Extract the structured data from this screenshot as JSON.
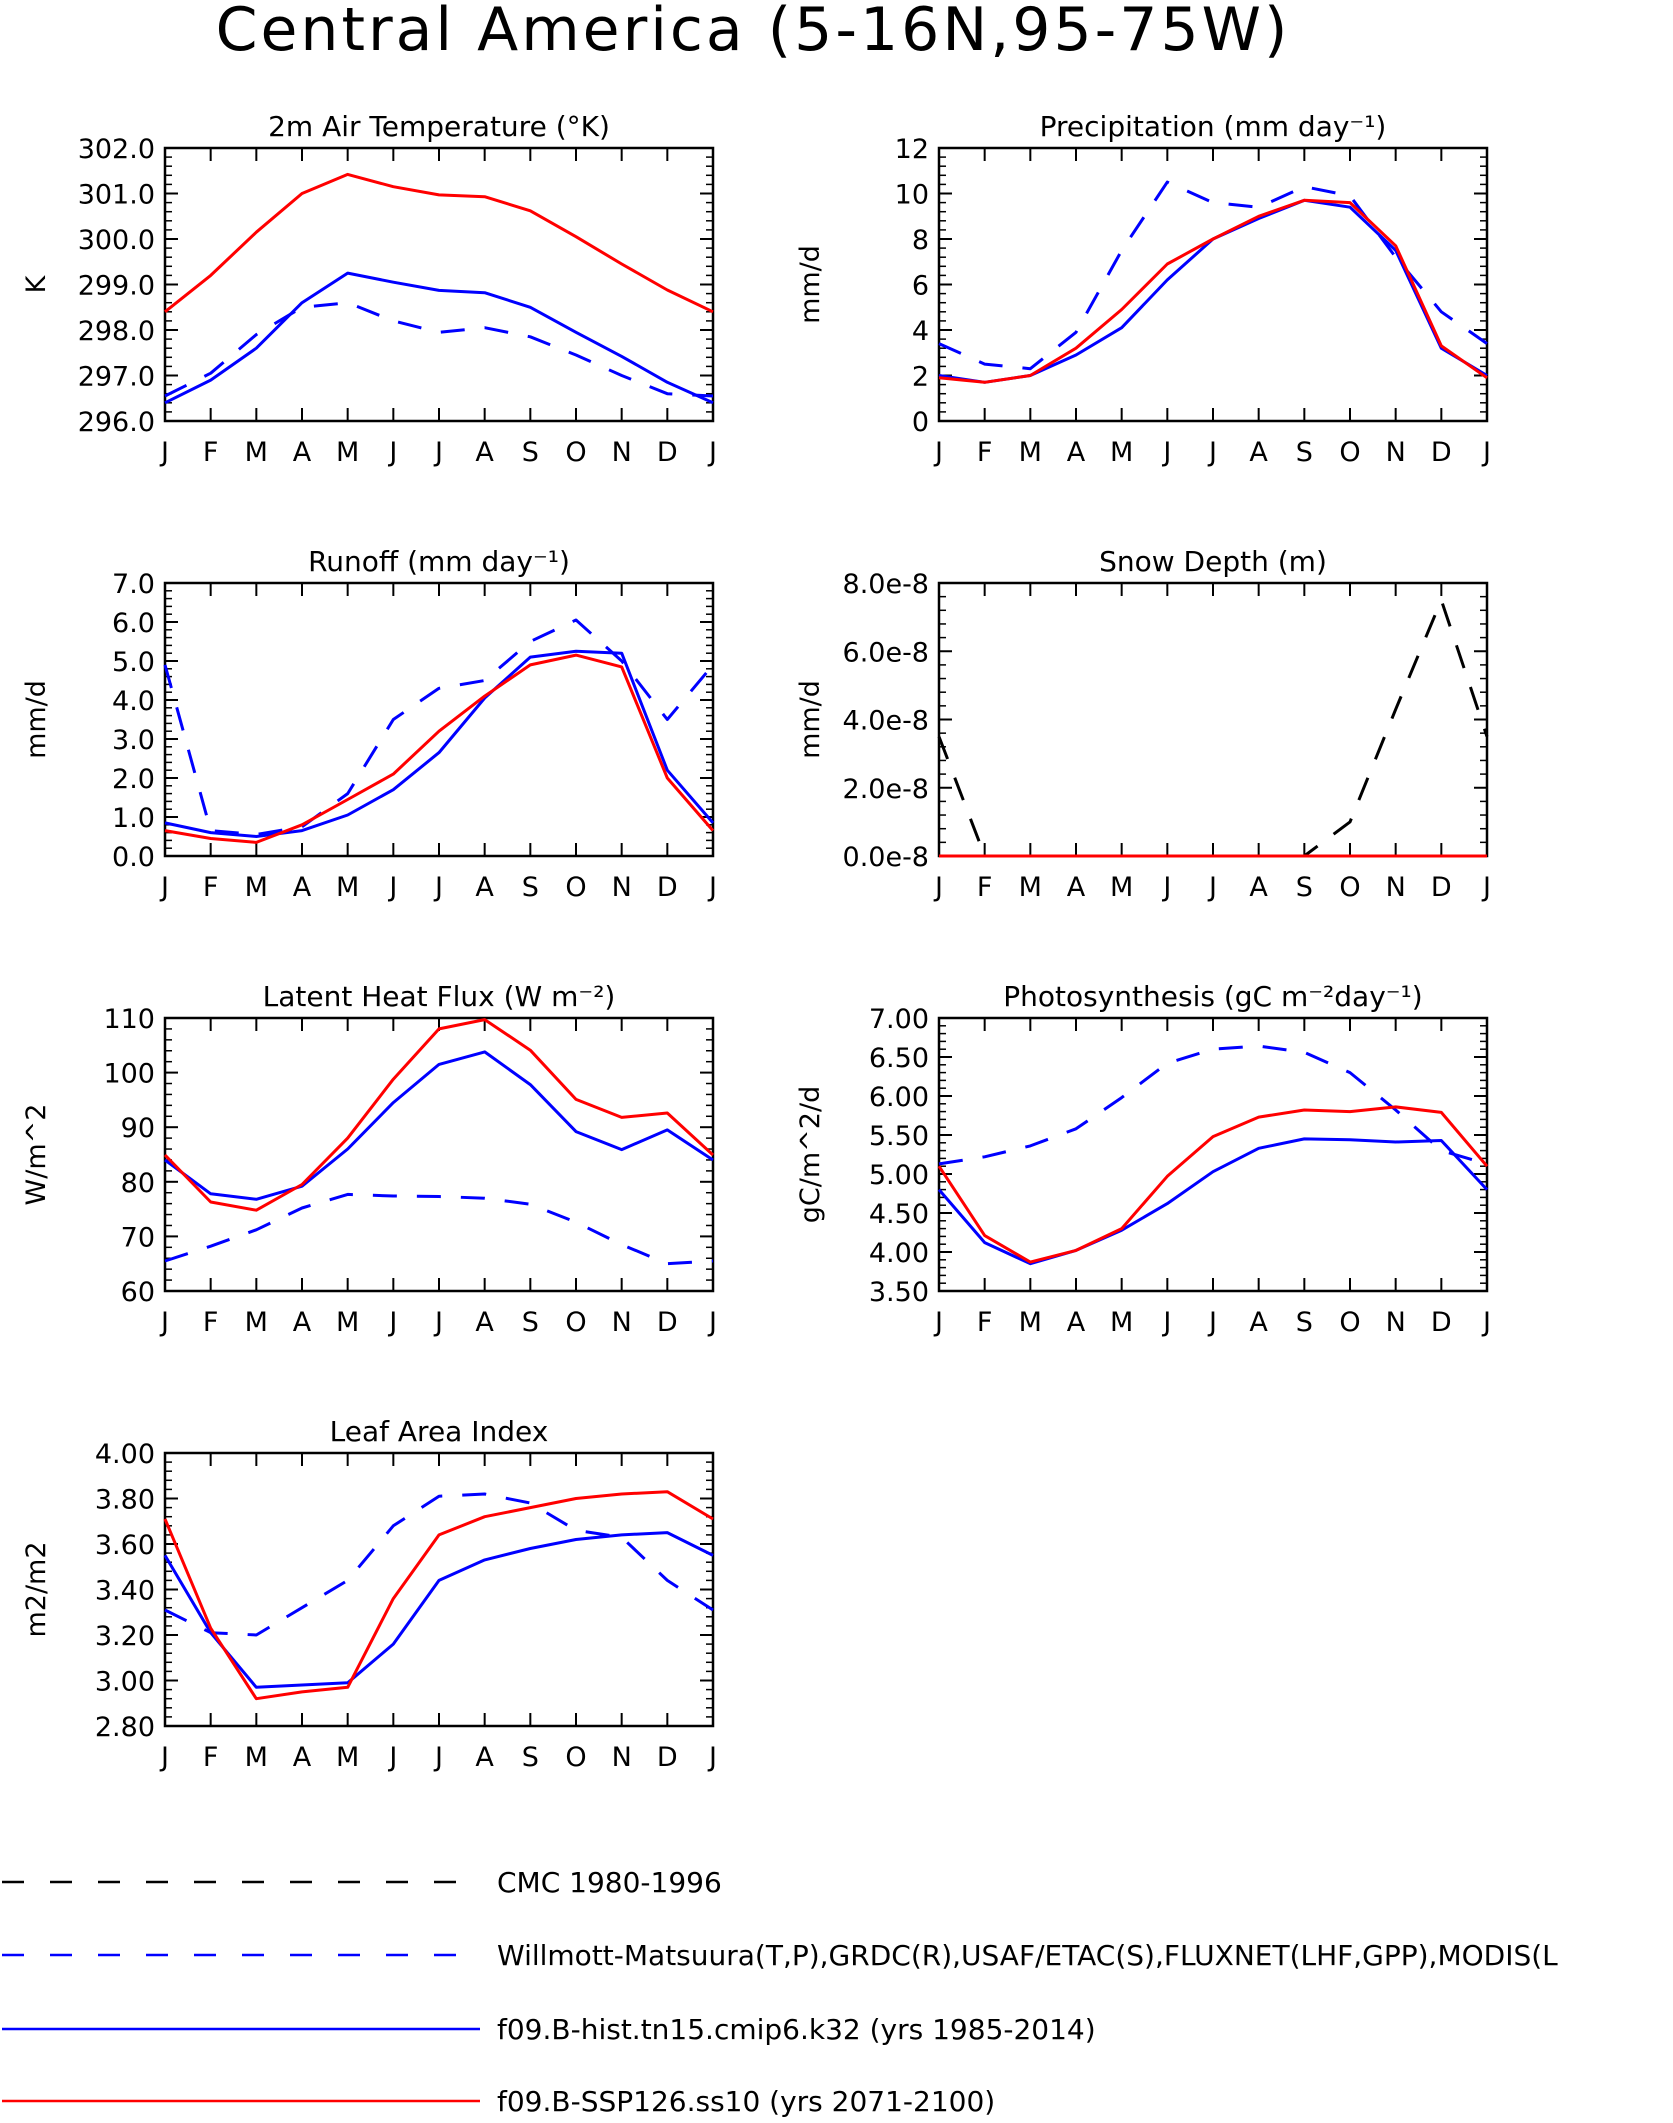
{
  "title": "Central America (5-16N,95-75W)",
  "months": [
    "J",
    "F",
    "M",
    "A",
    "M",
    "J",
    "J",
    "A",
    "S",
    "O",
    "N",
    "D",
    "J"
  ],
  "colors": {
    "cmc": "#000000",
    "obs": "#0000ff",
    "hist": "#0000ff",
    "ssp": "#ff0000"
  },
  "legend": [
    {
      "key": "cmc",
      "label": "CMC 1980-1996",
      "style": "dashed"
    },
    {
      "key": "obs",
      "label": "Willmott-Matsuura(T,P),GRDC(R),USAF/ETAC(S),FLUXNET(LHF,GPP),MODIS(L",
      "style": "dashed"
    },
    {
      "key": "hist",
      "label": "f09.B-hist.tn15.cmip6.k32 (yrs 1985-2014)",
      "style": "solid"
    },
    {
      "key": "ssp",
      "label": "f09.B-SSP126.ss10 (yrs 2071-2100)",
      "style": "solid"
    }
  ],
  "chart_data": [
    {
      "type": "line",
      "title": "2m Air Temperature (°K)",
      "ylabel": "K",
      "ylim": [
        296.0,
        302.0
      ],
      "yticks": [
        "296.0",
        "297.0",
        "298.0",
        "299.0",
        "300.0",
        "301.0",
        "302.0"
      ],
      "series": [
        {
          "name": "Willmott-Matsuura(T,P),GRDC(R),USAF/ETAC(S),FLUXNET(LHF,GPP),MODIS(L",
          "key": "obs",
          "values": [
            296.55,
            297.05,
            297.9,
            298.5,
            298.6,
            298.2,
            297.95,
            298.05,
            297.85,
            297.45,
            297.0,
            296.6,
            296.55
          ]
        },
        {
          "name": "f09.B-hist.tn15.cmip6.k32 (yrs 1985-2014)",
          "key": "hist",
          "values": [
            296.4,
            296.9,
            297.6,
            298.6,
            299.25,
            299.05,
            298.87,
            298.82,
            298.5,
            297.95,
            297.42,
            296.85,
            296.4
          ]
        },
        {
          "name": "f09.B-SSP126.ss10 (yrs 2071-2100)",
          "key": "ssp",
          "values": [
            298.4,
            299.2,
            300.15,
            301.0,
            301.42,
            301.15,
            300.97,
            300.93,
            300.62,
            300.05,
            299.45,
            298.88,
            298.4
          ]
        }
      ]
    },
    {
      "type": "line",
      "title": "Precipitation (mm day⁻¹)",
      "ylabel": "mm/d",
      "ylim": [
        0,
        12
      ],
      "yticks": [
        "0",
        "2",
        "4",
        "6",
        "8",
        "10",
        "12"
      ],
      "series": [
        {
          "name": "Willmott-Matsuura(T,P),GRDC(R),USAF/ETAC(S),FLUXNET(LHF,GPP),MODIS(L",
          "key": "obs",
          "values": [
            3.4,
            2.5,
            2.3,
            3.9,
            7.5,
            10.5,
            9.6,
            9.4,
            10.3,
            9.9,
            7.2,
            4.8,
            3.4
          ]
        },
        {
          "name": "f09.B-hist.tn15.cmip6.k32 (yrs 1985-2014)",
          "key": "hist",
          "values": [
            2.0,
            1.7,
            2.0,
            2.9,
            4.1,
            6.2,
            8.0,
            8.9,
            9.7,
            9.4,
            7.5,
            3.2,
            2.0
          ]
        },
        {
          "name": "f09.B-SSP126.ss10 (yrs 2071-2100)",
          "key": "ssp",
          "values": [
            1.9,
            1.7,
            2.0,
            3.2,
            4.9,
            6.9,
            8.0,
            9.0,
            9.7,
            9.6,
            7.7,
            3.3,
            1.9
          ]
        }
      ]
    },
    {
      "type": "line",
      "title": "Runoff (mm day⁻¹)",
      "ylabel": "mm/d",
      "ylim": [
        0,
        7
      ],
      "yticks": [
        "0.0",
        "1.0",
        "2.0",
        "3.0",
        "4.0",
        "5.0",
        "6.0",
        "7.0"
      ],
      "series": [
        {
          "name": "Willmott-Matsuura(T,P),GRDC(R),USAF/ETAC(S),FLUXNET(LHF,GPP),MODIS(L",
          "key": "obs",
          "values": [
            4.9,
            0.65,
            0.55,
            0.75,
            1.6,
            3.5,
            4.3,
            4.5,
            5.5,
            6.05,
            5.0,
            3.5,
            4.9
          ]
        },
        {
          "name": "f09.B-hist.tn15.cmip6.k32 (yrs 1985-2014)",
          "key": "hist",
          "values": [
            0.85,
            0.6,
            0.5,
            0.65,
            1.05,
            1.7,
            2.65,
            4.05,
            5.1,
            5.25,
            5.2,
            2.2,
            0.85
          ]
        },
        {
          "name": "f09.B-SSP126.ss10 (yrs 2071-2100)",
          "key": "ssp",
          "values": [
            0.65,
            0.45,
            0.35,
            0.8,
            1.45,
            2.1,
            3.2,
            4.1,
            4.9,
            5.15,
            4.85,
            2.0,
            0.65
          ]
        }
      ]
    },
    {
      "type": "line",
      "title": "Snow Depth (m)",
      "ylabel": "mm/d",
      "ylim": [
        0,
        8e-08
      ],
      "yticks": [
        "0.0e-8",
        "2.0e-8",
        "4.0e-8",
        "6.0e-8",
        "8.0e-8"
      ],
      "series": [
        {
          "name": "CMC 1980-1996",
          "key": "cmc",
          "values": [
            3.5e-08,
            0,
            0,
            0,
            0,
            0,
            0,
            0,
            0,
            1e-08,
            4.3e-08,
            7.5e-08,
            3.5e-08
          ]
        },
        {
          "name": "f09.B-hist.tn15.cmip6.k32 (yrs 1985-2014)",
          "key": "hist",
          "values": [
            0,
            0,
            0,
            0,
            0,
            0,
            0,
            0,
            0,
            0,
            0,
            0,
            0
          ]
        },
        {
          "name": "f09.B-SSP126.ss10 (yrs 2071-2100)",
          "key": "ssp",
          "values": [
            0,
            0,
            0,
            0,
            0,
            0,
            0,
            0,
            0,
            0,
            0,
            0,
            0
          ]
        }
      ]
    },
    {
      "type": "line",
      "title": "Latent Heat Flux (W m⁻²)",
      "ylabel": "W/m^2",
      "ylim": [
        60,
        110
      ],
      "yticks": [
        "60",
        "70",
        "80",
        "90",
        "100",
        "110"
      ],
      "series": [
        {
          "name": "Willmott-Matsuura(T,P),GRDC(R),USAF/ETAC(S),FLUXNET(LHF,GPP),MODIS(L",
          "key": "obs",
          "values": [
            65.5,
            68.2,
            71.2,
            75.2,
            77.7,
            77.4,
            77.3,
            77.0,
            75.9,
            72.6,
            68.5,
            65.0,
            65.5
          ]
        },
        {
          "name": "f09.B-hist.tn15.cmip6.k32 (yrs 1985-2014)",
          "key": "hist",
          "values": [
            84.0,
            77.8,
            76.8,
            79.2,
            86.0,
            94.5,
            101.5,
            103.8,
            97.8,
            89.2,
            85.9,
            89.5,
            84.0
          ]
        },
        {
          "name": "f09.B-SSP126.ss10 (yrs 2071-2100)",
          "key": "ssp",
          "values": [
            84.9,
            76.3,
            74.8,
            79.5,
            88.0,
            98.8,
            108.0,
            109.7,
            104.1,
            95.1,
            91.8,
            92.6,
            84.9
          ]
        }
      ]
    },
    {
      "type": "line",
      "title": "Photosynthesis (gC m⁻²day⁻¹)",
      "ylabel": "gC/m^2/d",
      "ylim": [
        3.5,
        7.0
      ],
      "yticks": [
        "3.50",
        "4.00",
        "4.50",
        "5.00",
        "5.50",
        "6.00",
        "6.50",
        "7.00"
      ],
      "series": [
        {
          "name": "Willmott-Matsuura(T,P),GRDC(R),USAF/ETAC(S),FLUXNET(LHF,GPP),MODIS(L",
          "key": "obs",
          "values": [
            5.13,
            5.22,
            5.36,
            5.58,
            5.98,
            6.42,
            6.6,
            6.64,
            6.56,
            6.3,
            5.82,
            5.3,
            5.13
          ]
        },
        {
          "name": "f09.B-hist.tn15.cmip6.k32 (yrs 1985-2014)",
          "key": "hist",
          "values": [
            4.8,
            4.12,
            3.85,
            4.02,
            4.28,
            4.62,
            5.03,
            5.33,
            5.45,
            5.44,
            5.41,
            5.43,
            4.8
          ]
        },
        {
          "name": "f09.B-SSP126.ss10 (yrs 2071-2100)",
          "key": "ssp",
          "values": [
            5.1,
            4.21,
            3.87,
            4.02,
            4.3,
            4.97,
            5.48,
            5.73,
            5.82,
            5.8,
            5.86,
            5.79,
            5.1
          ]
        }
      ]
    },
    {
      "type": "line",
      "title": "Leaf Area Index",
      "ylabel": "m2/m2",
      "ylim": [
        2.8,
        4.0
      ],
      "yticks": [
        "2.80",
        "3.00",
        "3.20",
        "3.40",
        "3.60",
        "3.80",
        "4.00"
      ],
      "series": [
        {
          "name": "Willmott-Matsuura(T,P),GRDC(R),USAF/ETAC(S),FLUXNET(LHF,GPP),MODIS(L",
          "key": "obs",
          "values": [
            3.31,
            3.21,
            3.2,
            3.32,
            3.44,
            3.68,
            3.81,
            3.82,
            3.78,
            3.66,
            3.63,
            3.44,
            3.31
          ]
        },
        {
          "name": "f09.B-hist.tn15.cmip6.k32 (yrs 1985-2014)",
          "key": "hist",
          "values": [
            3.55,
            3.21,
            2.97,
            2.98,
            2.99,
            3.16,
            3.44,
            3.53,
            3.58,
            3.62,
            3.64,
            3.65,
            3.55
          ]
        },
        {
          "name": "f09.B-SSP126.ss10 (yrs 2071-2100)",
          "key": "ssp",
          "values": [
            3.71,
            3.23,
            2.92,
            2.95,
            2.97,
            3.36,
            3.64,
            3.72,
            3.76,
            3.8,
            3.82,
            3.83,
            3.71
          ]
        }
      ]
    }
  ]
}
